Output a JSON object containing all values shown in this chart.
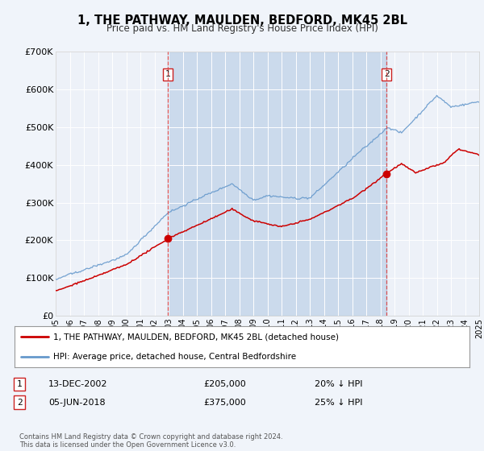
{
  "title": "1, THE PATHWAY, MAULDEN, BEDFORD, MK45 2BL",
  "subtitle": "Price paid vs. HM Land Registry's House Price Index (HPI)",
  "bg_color": "#f0f4fa",
  "plot_bg_color": "#edf1f8",
  "grid_color": "#ffffff",
  "red_line_color": "#cc0000",
  "blue_line_color": "#6699cc",
  "blue_fill_color": "#c8d8ee",
  "sale1_year": 2002.96,
  "sale1_price": 205000,
  "sale1_label": "1",
  "sale2_year": 2018.43,
  "sale2_price": 375000,
  "sale2_label": "2",
  "xmin": 1995,
  "xmax": 2025,
  "ymin": 0,
  "ymax": 700000,
  "yticks": [
    0,
    100000,
    200000,
    300000,
    400000,
    500000,
    600000,
    700000
  ],
  "ytick_labels": [
    "£0",
    "£100K",
    "£200K",
    "£300K",
    "£400K",
    "£500K",
    "£600K",
    "£700K"
  ],
  "legend_label_red": "1, THE PATHWAY, MAULDEN, BEDFORD, MK45 2BL (detached house)",
  "legend_label_blue": "HPI: Average price, detached house, Central Bedfordshire",
  "note1_label": "1",
  "note1_date": "13-DEC-2002",
  "note1_price": "£205,000",
  "note1_hpi": "20% ↓ HPI",
  "note2_label": "2",
  "note2_date": "05-JUN-2018",
  "note2_price": "£375,000",
  "note2_hpi": "25% ↓ HPI",
  "footer": "Contains HM Land Registry data © Crown copyright and database right 2024.\nThis data is licensed under the Open Government Licence v3.0."
}
